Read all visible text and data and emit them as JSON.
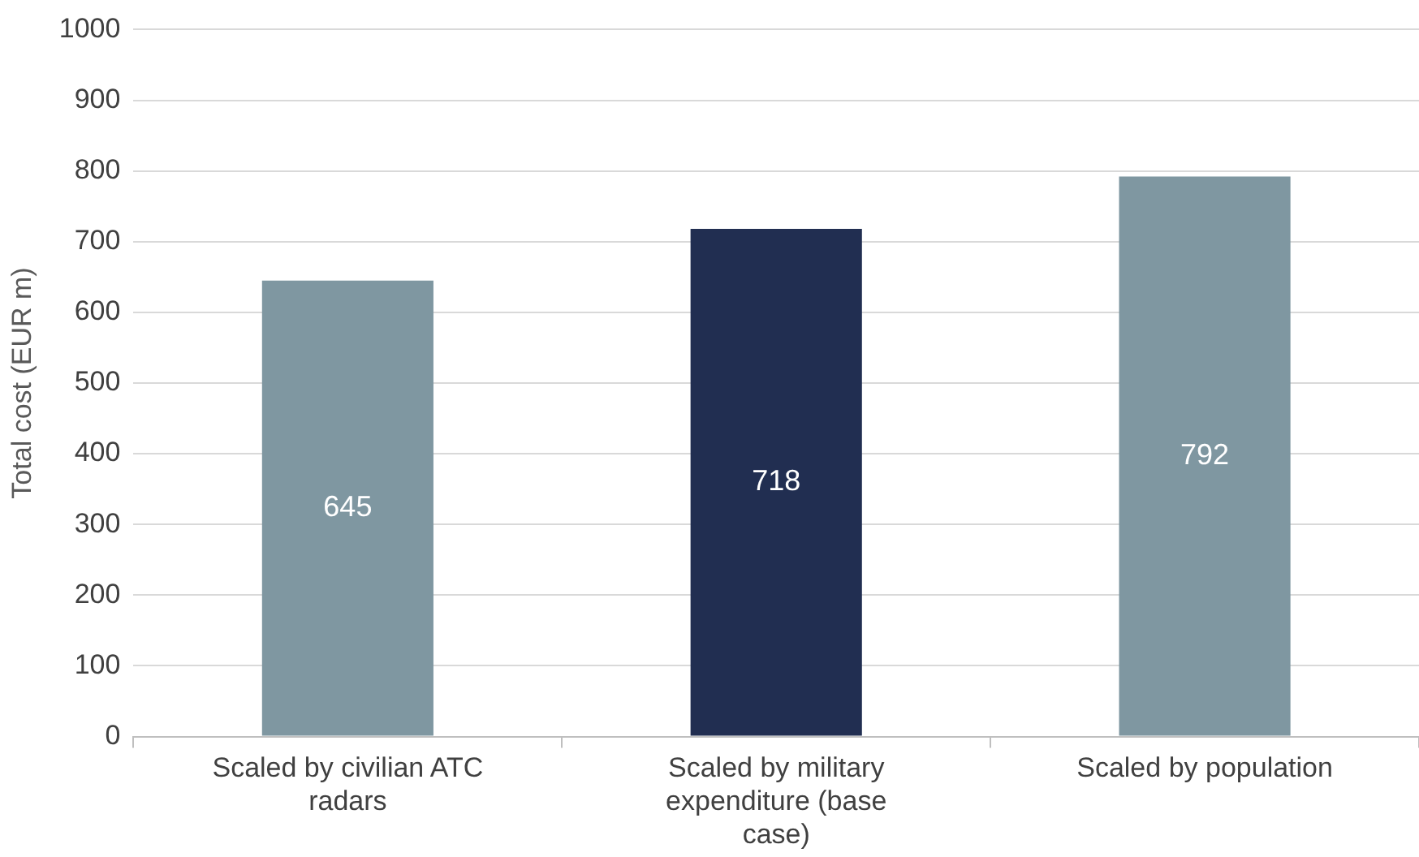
{
  "chart_data": {
    "type": "bar",
    "ylabel": "Total cost (EUR m)",
    "categories": [
      "Scaled by civilian ATC radars",
      "Scaled by military expenditure (base case)",
      "Scaled by population"
    ],
    "values": [
      645,
      718,
      792
    ],
    "colors": [
      "#7f97a1",
      "#212e51",
      "#7f97a1"
    ],
    "ylim": [
      0,
      1000
    ],
    "yticks": [
      0,
      100,
      200,
      300,
      400,
      500,
      600,
      700,
      800,
      900,
      1000
    ],
    "grid": "y",
    "legend": false,
    "data_labels": true
  }
}
